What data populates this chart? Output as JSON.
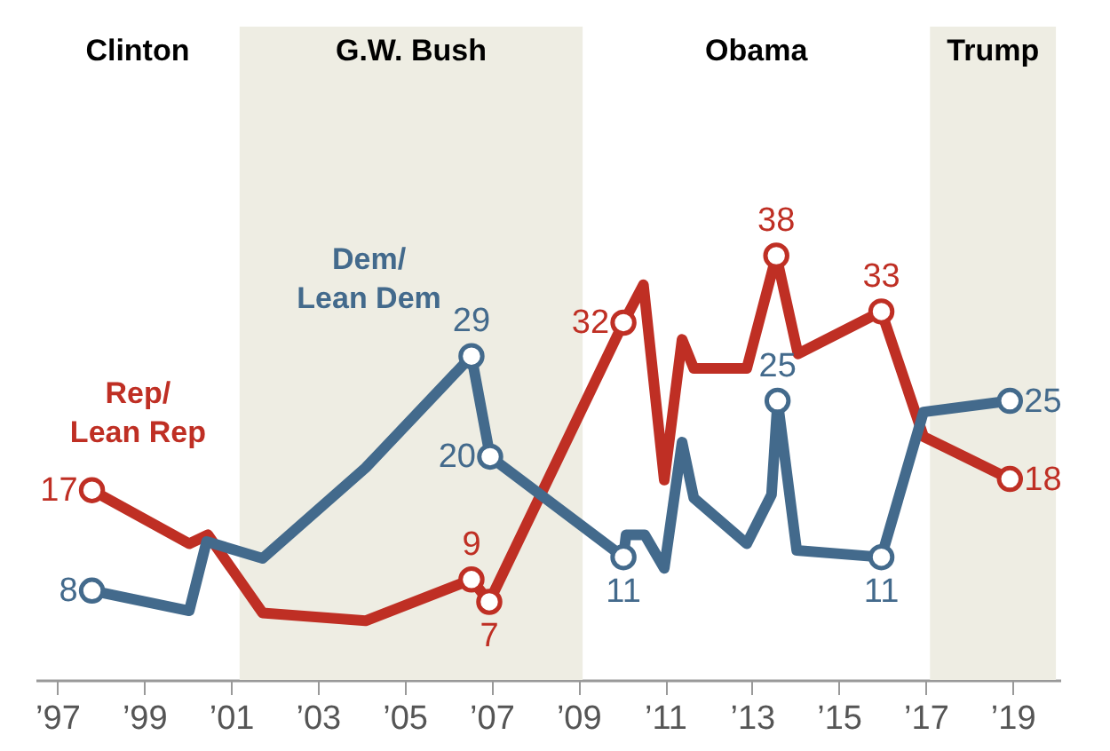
{
  "chart_data": {
    "type": "line",
    "xlim": [
      1996.5,
      2020.1
    ],
    "xticks": [
      {
        "value": 1997,
        "label": "’97"
      },
      {
        "value": 1999,
        "label": "’99"
      },
      {
        "value": 2001,
        "label": "’01"
      },
      {
        "value": 2003,
        "label": "’03"
      },
      {
        "value": 2005,
        "label": "’05"
      },
      {
        "value": 2007,
        "label": "’07"
      },
      {
        "value": 2009,
        "label": "’09"
      },
      {
        "value": 2011,
        "label": "’11"
      },
      {
        "value": 2013,
        "label": "’13"
      },
      {
        "value": 2015,
        "label": "’15"
      },
      {
        "value": 2017,
        "label": "’17"
      },
      {
        "value": 2019,
        "label": "’19"
      }
    ],
    "tick_labels": "x",
    "line_style": "solid",
    "bands": [
      {
        "axis": "x",
        "from": 2001.2,
        "to": 2009.1,
        "label": "G.W. Bush",
        "color": "#eeede3"
      },
      {
        "axis": "x",
        "from": 2017.1,
        "to": 2020.0,
        "label": "Trump",
        "color": "#eeede3"
      }
    ],
    "annotations": [
      "Clinton",
      "Obama"
    ],
    "series": [
      {
        "name": "Rep/\nLean Rep",
        "color": "#bf2f24",
        "x": [
          1997.8,
          2000.04,
          2000.47,
          2001.73,
          2004.1,
          2006.54,
          2006.95,
          2010.04,
          2010.5,
          2010.98,
          2011.39,
          2011.66,
          2012.88,
          2013.56,
          2014.06,
          2015.98,
          2016.95,
          2018.94
        ],
        "values": [
          17,
          12.2,
          13,
          6,
          5.3,
          9,
          7,
          32,
          35.4,
          17.9,
          30.5,
          27.9,
          27.9,
          38,
          29.2,
          33,
          21.8,
          18
        ],
        "value_labels": [
          "17",
          null,
          null,
          null,
          null,
          "9",
          "7",
          "32",
          null,
          null,
          null,
          null,
          null,
          "38",
          null,
          "33",
          null,
          "18"
        ]
      },
      {
        "name": "Dem/\nLean Dem",
        "color": "#436a8c",
        "x": [
          1997.8,
          2000.04,
          2000.44,
          2001.73,
          2004.1,
          2006.54,
          2006.97,
          2010.04,
          2010.1,
          2010.53,
          2010.98,
          2011.39,
          2011.66,
          2012.88,
          2013.45,
          2013.59,
          2014.03,
          2015.98,
          2016.95,
          2018.94
        ],
        "values": [
          8,
          6.2,
          12.4,
          10.9,
          19,
          29,
          20,
          11,
          13,
          13,
          10,
          21.3,
          16.3,
          12.2,
          16.6,
          25,
          11.6,
          11,
          24,
          25
        ],
        "value_labels": [
          "8",
          null,
          null,
          null,
          null,
          "29",
          "20",
          "11",
          null,
          null,
          null,
          null,
          null,
          null,
          null,
          "25",
          null,
          "11",
          null,
          "25"
        ]
      }
    ]
  }
}
